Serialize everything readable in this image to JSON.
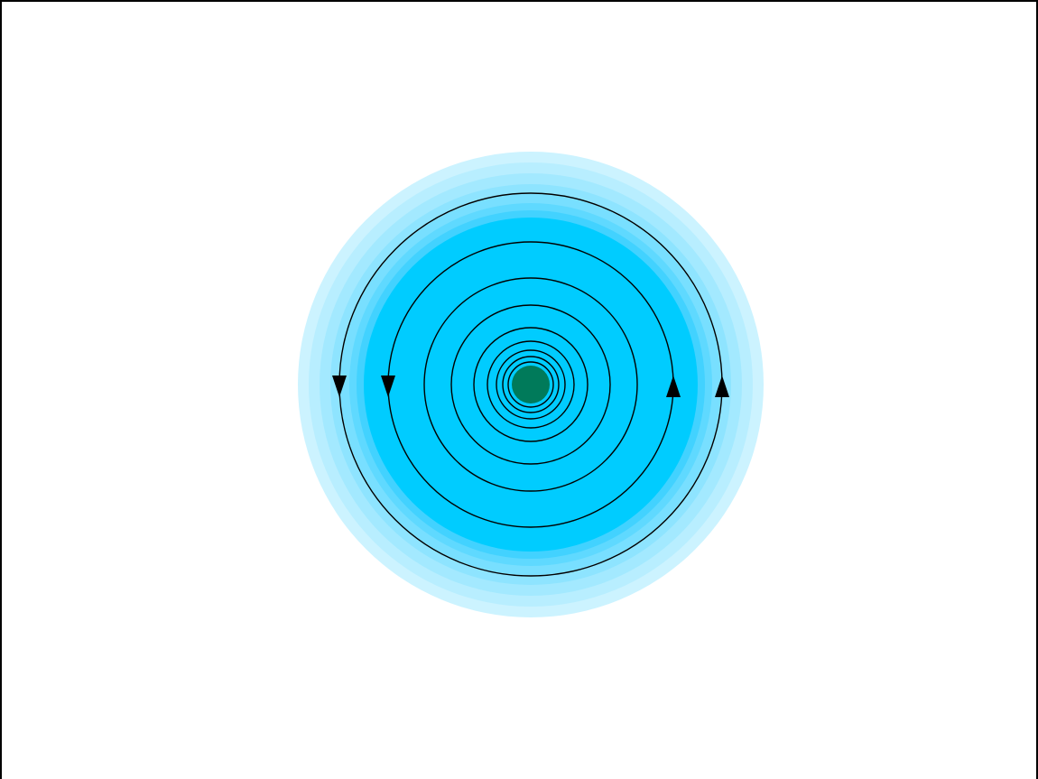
{
  "diagram": {
    "kind": "concentric-flow",
    "halo_colors": [
      "#ccf3ff",
      "#b8eeff",
      "#a3e9ff",
      "#8ee4ff",
      "#78dfff",
      "#5fd9ff",
      "#42d2ff",
      "#00ccff"
    ],
    "core_color": "#007a5a",
    "line_color": "#000000",
    "line_count": 9,
    "arrow_icons": [
      "arrow-down-icon",
      "arrow-down-icon",
      "arrow-up-icon",
      "arrow-up-icon"
    ]
  }
}
